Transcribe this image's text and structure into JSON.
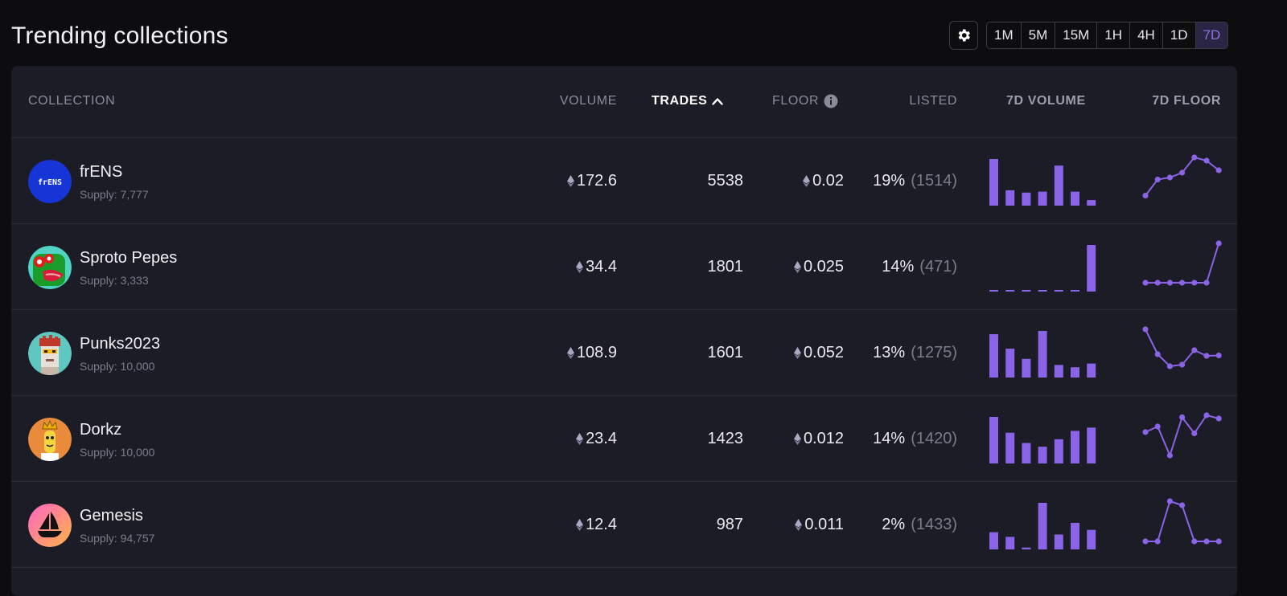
{
  "header": {
    "title": "Trending collections",
    "settings_icon": "gear-icon",
    "timeframes": [
      "1M",
      "5M",
      "15M",
      "1H",
      "4H",
      "1D",
      "7D"
    ],
    "active_timeframe": "7D"
  },
  "table": {
    "columns": {
      "collection": "COLLECTION",
      "volume": "VOLUME",
      "trades": "TRADES",
      "floor": "FLOOR",
      "listed": "LISTED",
      "volume_7d": "7D VOLUME",
      "floor_7d": "7D FLOOR"
    },
    "sort": {
      "column": "trades",
      "direction": "ascending-icon"
    },
    "rows": [
      {
        "name": "frENS",
        "supply": "Supply: 7,777",
        "avatar_text": "frENS",
        "volume": "172.6",
        "trades": "5538",
        "floor": "0.02",
        "listed_pct": "19%",
        "listed_count": "(1514)",
        "volume_7d_bars": [
          1.0,
          0.33,
          0.28,
          0.3,
          0.86,
          0.3,
          0.12
        ],
        "floor_7d_line": [
          0.05,
          0.45,
          0.5,
          0.62,
          1.0,
          0.92,
          0.68
        ]
      },
      {
        "name": "Sproto Pepes",
        "supply": "Supply: 3,333",
        "avatar_text": "",
        "volume": "34.4",
        "trades": "1801",
        "floor": "0.025",
        "listed_pct": "14%",
        "listed_count": "(471)",
        "volume_7d_bars": [
          0.02,
          0.02,
          0.02,
          0.02,
          0.02,
          0.02,
          1.0
        ],
        "floor_7d_line": [
          0.02,
          0.02,
          0.02,
          0.02,
          0.02,
          0.02,
          1.0
        ]
      },
      {
        "name": "Punks2023",
        "supply": "Supply: 10,000",
        "avatar_text": "",
        "volume": "108.9",
        "trades": "1601",
        "floor": "0.052",
        "listed_pct": "13%",
        "listed_count": "(1275)",
        "volume_7d_bars": [
          0.93,
          0.62,
          0.4,
          1.0,
          0.27,
          0.22,
          0.3
        ],
        "floor_7d_line": [
          1.0,
          0.38,
          0.08,
          0.12,
          0.48,
          0.34,
          0.35
        ]
      },
      {
        "name": "Dorkz",
        "supply": "Supply: 10,000",
        "avatar_text": "",
        "volume": "23.4",
        "trades": "1423",
        "floor": "0.012",
        "listed_pct": "14%",
        "listed_count": "(1420)",
        "volume_7d_bars": [
          1.0,
          0.66,
          0.44,
          0.36,
          0.52,
          0.7,
          0.77
        ],
        "floor_7d_line": [
          0.58,
          0.72,
          0.0,
          0.95,
          0.55,
          1.0,
          0.92
        ]
      },
      {
        "name": "Gemesis",
        "supply": "Supply: 94,757",
        "avatar_text": "",
        "volume": "12.4",
        "trades": "987",
        "floor": "0.011",
        "listed_pct": "2%",
        "listed_count": "(1433)",
        "volume_7d_bars": [
          0.37,
          0.27,
          0.04,
          1.0,
          0.32,
          0.57,
          0.42
        ],
        "floor_7d_line": [
          0.0,
          0.0,
          1.0,
          0.9,
          0.0,
          0.0,
          0.0
        ]
      }
    ]
  },
  "colors": {
    "accent": "#8a63e6",
    "panel_bg": "#1c1c27",
    "page_bg": "#0d0d0f"
  }
}
